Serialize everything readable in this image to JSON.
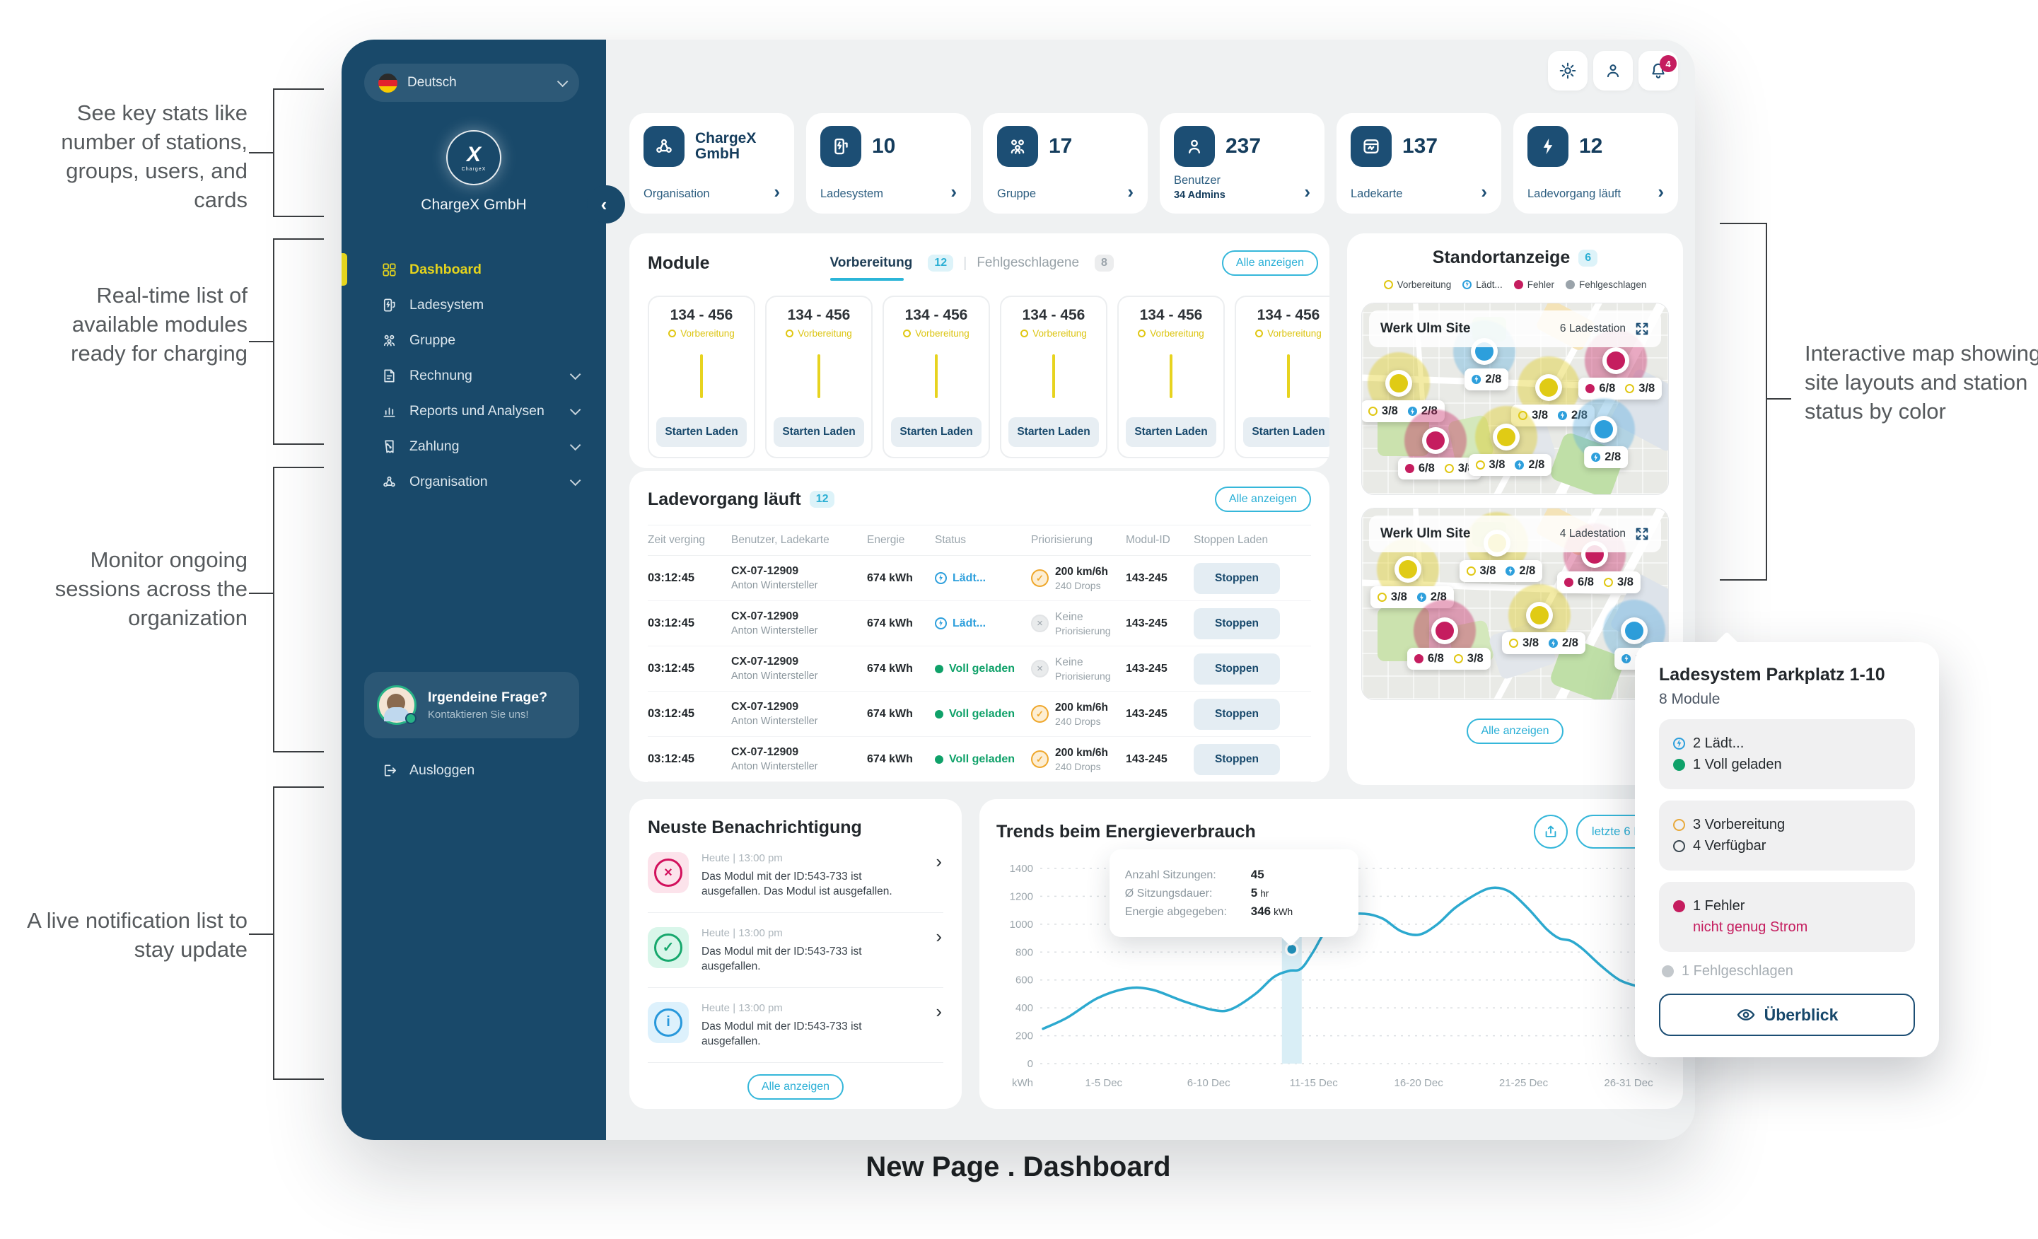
{
  "colors": {
    "accent_cyan": "#2BB5D8",
    "navy": "#19496A",
    "active_yellow": "#E5D41D",
    "error_crimson": "#C51D5F",
    "success_green": "#0FA169",
    "charging_blue": "#2D9FDC",
    "priority_orange": "#EFA82E",
    "bg": "#EFF1F2"
  },
  "annotations": {
    "left": [
      {
        "text": "See key stats like number of stations, groups, users, and cards"
      },
      {
        "text": "Real-time list of available modules ready for charging"
      },
      {
        "text": "Monitor ongoing sessions across the organization"
      },
      {
        "text": "A live notification list to stay update"
      }
    ],
    "right": {
      "text": "Interactive map showing site layouts and station status by color"
    },
    "caption": "New Page . Dashboard"
  },
  "sidebar": {
    "language": {
      "label": "Deutsch"
    },
    "logo_x": "X",
    "logo_word": "ChargeX",
    "org_name": "ChargeX GmbH",
    "nav": [
      {
        "label": "Dashboard"
      },
      {
        "label": "Ladesystem"
      },
      {
        "label": "Gruppe"
      },
      {
        "label": "Rechnung"
      },
      {
        "label": "Reports und Analysen"
      },
      {
        "label": "Zahlung"
      },
      {
        "label": "Organisation"
      }
    ],
    "contact": {
      "title": "Irgendeine Frage?",
      "subtitle": "Kontaktieren Sie uns!"
    },
    "logout": "Ausloggen"
  },
  "topbar": {
    "bell_count": "4"
  },
  "stats": [
    {
      "value": "ChargeX GmbH",
      "label": "Organisation"
    },
    {
      "value": "10",
      "label": "Ladesystem"
    },
    {
      "value": "17",
      "label": "Gruppe"
    },
    {
      "value": "237",
      "label": "Benutzer",
      "sublabel": "34 Admins"
    },
    {
      "value": "137",
      "label": "Ladekarte"
    },
    {
      "value": "12",
      "label": "Ladevorgang läuft"
    }
  ],
  "module_section": {
    "title": "Module",
    "tabs": [
      {
        "label": "Vorbereitung",
        "count": "12"
      },
      {
        "label": "Fehlgeschlagene",
        "count": "8"
      }
    ],
    "show_all": "Alle anzeigen",
    "cards": [
      {
        "id": "134 - 456",
        "status": "Vorbereitung",
        "action": "Starten Laden"
      },
      {
        "id": "134 - 456",
        "status": "Vorbereitung",
        "action": "Starten Laden"
      },
      {
        "id": "134 - 456",
        "status": "Vorbereitung",
        "action": "Starten Laden"
      },
      {
        "id": "134 - 456",
        "status": "Vorbereitung",
        "action": "Starten Laden"
      },
      {
        "id": "134 - 456",
        "status": "Vorbereitung",
        "action": "Starten Laden"
      },
      {
        "id": "134 - 456",
        "status": "Vorbereitung",
        "action": "Starten Laden"
      }
    ]
  },
  "sessions": {
    "title": "Ladevorgang läuft",
    "count": "12",
    "show_all": "Alle anzeigen",
    "columns": [
      {
        "name": "Zeit verging"
      },
      {
        "name": "Benutzer, Ladekarte"
      },
      {
        "name": "Energie"
      },
      {
        "name": "Status"
      },
      {
        "name": "Priorisierung"
      },
      {
        "name": "Modul-ID"
      },
      {
        "name": "Stoppen Laden"
      }
    ],
    "rows": [
      {
        "time": "03:12:45",
        "card": "CX-07-12909",
        "user": "Anton Wintersteller",
        "energy": "674 kWh",
        "status": "Lädt...",
        "status_type": "charging",
        "prio_type": "set",
        "prio_l1": "200 km/6h",
        "prio_l2": "240 Drops",
        "module_id": "143-245",
        "action": "Stoppen"
      },
      {
        "time": "03:12:45",
        "card": "CX-07-12909",
        "user": "Anton Wintersteller",
        "energy": "674 kWh",
        "status": "Lädt...",
        "status_type": "charging",
        "prio_type": "none",
        "prio_l1": "Keine",
        "prio_l2": "Priorisierung",
        "module_id": "143-245",
        "action": "Stoppen"
      },
      {
        "time": "03:12:45",
        "card": "CX-07-12909",
        "user": "Anton Wintersteller",
        "energy": "674 kWh",
        "status": "Voll geladen",
        "status_type": "full",
        "prio_type": "none",
        "prio_l1": "Keine",
        "prio_l2": "Priorisierung",
        "module_id": "143-245",
        "action": "Stoppen"
      },
      {
        "time": "03:12:45",
        "card": "CX-07-12909",
        "user": "Anton Wintersteller",
        "energy": "674 kWh",
        "status": "Voll geladen",
        "status_type": "full",
        "prio_type": "set",
        "prio_l1": "200 km/6h",
        "prio_l2": "240 Drops",
        "module_id": "143-245",
        "action": "Stoppen"
      },
      {
        "time": "03:12:45",
        "card": "CX-07-12909",
        "user": "Anton Wintersteller",
        "energy": "674 kWh",
        "status": "Voll geladen",
        "status_type": "full",
        "prio_type": "set",
        "prio_l1": "200 km/6h",
        "prio_l2": "240 Drops",
        "module_id": "143-245",
        "action": "Stoppen"
      }
    ]
  },
  "notifications": {
    "title": "Neuste Benachrichtigung",
    "show_all": "Alle anzeigen",
    "items": [
      {
        "type": "error",
        "glyph": "×",
        "time": "Heute | 13:00 pm",
        "text": "Das Modul mit der ID:543-733 ist ausgefallen. Das Modul ist ausgefallen."
      },
      {
        "type": "success",
        "glyph": "✓",
        "time": "Heute | 13:00 pm",
        "text": "Das Modul mit der ID:543-733 ist ausgefallen."
      },
      {
        "type": "info",
        "glyph": "i",
        "time": "Heute | 13:00 pm",
        "text": "Das Modul mit der ID:543-733 ist ausgefallen."
      }
    ]
  },
  "standort": {
    "title": "Standortanzeige",
    "count": "6",
    "show_all": "Alle anzeigen",
    "legend": [
      {
        "k": "prep",
        "label": "Vorbereitung"
      },
      {
        "k": "charging",
        "label": "Lädt..."
      },
      {
        "k": "error",
        "label": "Fehler"
      },
      {
        "k": "failed",
        "label": "Fehlgeschlagen"
      }
    ],
    "maps": [
      {
        "site": "Werk Ulm Site",
        "stations": "6 Ladestation",
        "markers": [
          {
            "type": "prep",
            "style": "left:12%;top:42%",
            "labels": [
              {
                "k": "prep",
                "t": "3/8"
              },
              {
                "k": "charging",
                "t": "2/8"
              }
            ]
          },
          {
            "type": "charging",
            "style": "left:40%;top:25%",
            "labels": [
              {
                "k": "charging",
                "t": "2/8"
              }
            ]
          },
          {
            "type": "prep",
            "style": "left:61%;top:44%",
            "labels": [
              {
                "k": "prep",
                "t": "3/8"
              },
              {
                "k": "charging",
                "t": "2/8"
              }
            ]
          },
          {
            "type": "error",
            "style": "left:83%;top:30%",
            "labels": [
              {
                "k": "error",
                "t": "6/8"
              },
              {
                "k": "prep",
                "t": "3/8"
              }
            ]
          },
          {
            "type": "error",
            "style": "left:24%;top:72%",
            "labels": [
              {
                "k": "error",
                "t": "6/8"
              },
              {
                "k": "prep",
                "t": "3/8"
              }
            ]
          },
          {
            "type": "prep",
            "style": "left:47%;top:70%",
            "labels": [
              {
                "k": "prep",
                "t": "3/8"
              },
              {
                "k": "charging",
                "t": "2/8"
              }
            ]
          },
          {
            "type": "charging",
            "style": "left:79%;top:66%",
            "labels": [
              {
                "k": "charging",
                "t": "2/8"
              }
            ]
          }
        ]
      },
      {
        "site": "Werk Ulm Site",
        "stations": "4 Ladestation",
        "markers": [
          {
            "type": "prep",
            "style": "left:15%;top:32%",
            "labels": [
              {
                "k": "prep",
                "t": "3/8"
              },
              {
                "k": "charging",
                "t": "2/8"
              }
            ]
          },
          {
            "type": "prep",
            "style": "left:44%;top:18%",
            "labels": [
              {
                "k": "prep",
                "t": "3/8"
              },
              {
                "k": "charging",
                "t": "2/8"
              }
            ]
          },
          {
            "type": "error",
            "style": "left:76%;top:24%",
            "labels": [
              {
                "k": "error",
                "t": "6/8"
              },
              {
                "k": "prep",
                "t": "3/8"
              }
            ]
          },
          {
            "type": "error",
            "style": "left:27%;top:64%",
            "labels": [
              {
                "k": "error",
                "t": "6/8"
              },
              {
                "k": "prep",
                "t": "3/8"
              }
            ]
          },
          {
            "type": "prep",
            "style": "left:58%;top:56%",
            "labels": [
              {
                "k": "prep",
                "t": "3/8"
              },
              {
                "k": "charging",
                "t": "2/8"
              }
            ]
          },
          {
            "type": "charging",
            "style": "left:89%;top:64%",
            "labels": [
              {
                "k": "charging",
                "t": "2/8"
              }
            ]
          }
        ]
      }
    ]
  },
  "popup": {
    "title": "Ladesystem Parkplatz 1-10",
    "subtitle": "8 Module",
    "groups": [
      {
        "tone": "gray",
        "items": [
          {
            "k": "charging",
            "text": "2 Lädt...",
            "cls": ""
          },
          {
            "k": "full",
            "text": "1 Voll geladen",
            "cls": ""
          }
        ]
      },
      {
        "tone": "gray",
        "items": [
          {
            "k": "prep",
            "text": "3 Vorbereitung",
            "cls": ""
          },
          {
            "k": "avail",
            "text": "4 Verfügbar",
            "cls": ""
          }
        ]
      },
      {
        "tone": "pink",
        "items": [
          {
            "k": "error",
            "text": "1 Fehler",
            "cls": ""
          },
          {
            "k": "none",
            "text": "nicht genug Strom",
            "cls": "error-text"
          }
        ]
      }
    ],
    "failed": "1 Fehlgeschlagen",
    "button": "Überblick"
  },
  "chart_data": {
    "type": "line",
    "title": "Trends beim Energieverbrauch",
    "range_label": "letzte 6 Mo",
    "unit": "kWh",
    "xlabel": "",
    "ylabel": "kWh",
    "ylim": [
      0,
      1400
    ],
    "grid": true,
    "legend_position": "none",
    "y_ticks": [
      0,
      200,
      400,
      600,
      800,
      1000,
      1200,
      1400
    ],
    "x_ticks": [
      {
        "label": "1-5 Dec"
      },
      {
        "label": "6-10 Dec"
      },
      {
        "label": "11-15 Dec"
      },
      {
        "label": "16-20 Dec"
      },
      {
        "label": "21-25 Dec"
      },
      {
        "label": "26-31 Dec"
      }
    ],
    "tick_f": [
      0.1,
      0.273,
      0.446,
      0.619,
      0.792,
      0.965
    ],
    "points": [
      [
        0,
        250
      ],
      [
        0.04,
        330
      ],
      [
        0.09,
        470
      ],
      [
        0.14,
        540
      ],
      [
        0.18,
        530
      ],
      [
        0.23,
        450
      ],
      [
        0.28,
        385
      ],
      [
        0.31,
        390
      ],
      [
        0.35,
        500
      ],
      [
        0.38,
        620
      ],
      [
        0.405,
        665
      ],
      [
        0.425,
        680
      ],
      [
        0.445,
        800
      ],
      [
        0.47,
        980
      ],
      [
        0.5,
        1060
      ],
      [
        0.53,
        1075
      ],
      [
        0.56,
        1040
      ],
      [
        0.59,
        950
      ],
      [
        0.62,
        925
      ],
      [
        0.65,
        1000
      ],
      [
        0.68,
        1120
      ],
      [
        0.72,
        1230
      ],
      [
        0.745,
        1262
      ],
      [
        0.77,
        1230
      ],
      [
        0.8,
        1110
      ],
      [
        0.83,
        965
      ],
      [
        0.85,
        900
      ],
      [
        0.87,
        880
      ],
      [
        0.89,
        820
      ],
      [
        0.92,
        700
      ],
      [
        0.95,
        600
      ],
      [
        0.98,
        555
      ],
      [
        1,
        545
      ]
    ],
    "highlight_x": 0.41,
    "dot": [
      0.41,
      820
    ],
    "tooltip": {
      "rows": [
        {
          "label": "Anzahl Sitzungen:",
          "value": "45",
          "unit": ""
        },
        {
          "label": "Ø Sitzungsdauer:",
          "value": "5",
          "unit": "hr"
        },
        {
          "label": "Energie abgegeben:",
          "value": "346",
          "unit": "kWh"
        }
      ]
    }
  }
}
